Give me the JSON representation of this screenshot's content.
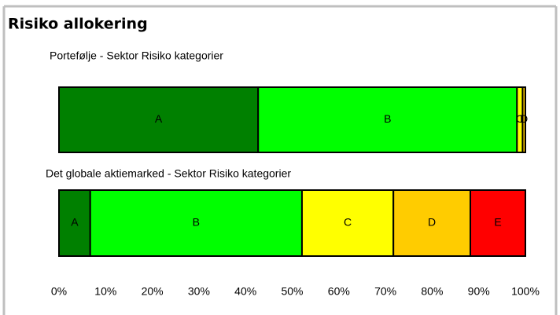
{
  "header": {
    "title": "Risiko allokering"
  },
  "chart_data": [
    {
      "type": "bar",
      "orientation": "horizontal",
      "stacked": true,
      "title": "Portefølje - Sektor Risiko kategorier",
      "series": [
        {
          "name": "A",
          "color": "#008000",
          "values": [
            42.7
          ]
        },
        {
          "name": "B",
          "color": "#00ff00",
          "values": [
            55.5
          ]
        },
        {
          "name": "C",
          "color": "#ffff00",
          "values": [
            1.2
          ]
        },
        {
          "name": "D",
          "color": "#ffcc00",
          "values": [
            0.6
          ]
        }
      ],
      "xlim": [
        0,
        100
      ]
    },
    {
      "type": "bar",
      "orientation": "horizontal",
      "stacked": true,
      "title": "Det globale aktiemarked - Sektor Risiko kategorier",
      "series": [
        {
          "name": "A",
          "color": "#008000",
          "values": [
            6.7
          ]
        },
        {
          "name": "B",
          "color": "#00ff00",
          "values": [
            45.4
          ]
        },
        {
          "name": "C",
          "color": "#ffff00",
          "values": [
            19.6
          ]
        },
        {
          "name": "D",
          "color": "#ffcc00",
          "values": [
            16.5
          ]
        },
        {
          "name": "E",
          "color": "#ff0000",
          "values": [
            11.8
          ]
        }
      ],
      "xlim": [
        0,
        100
      ],
      "xticks": [
        {
          "value": 0,
          "label": "0%"
        },
        {
          "value": 10,
          "label": "10%"
        },
        {
          "value": 20,
          "label": "20%"
        },
        {
          "value": 30,
          "label": "30%"
        },
        {
          "value": 40,
          "label": "40%"
        },
        {
          "value": 50,
          "label": "50%"
        },
        {
          "value": 60,
          "label": "60%"
        },
        {
          "value": 70,
          "label": "70%"
        },
        {
          "value": 80,
          "label": "80%"
        },
        {
          "value": 90,
          "label": "90%"
        },
        {
          "value": 100,
          "label": "100%"
        }
      ]
    }
  ]
}
